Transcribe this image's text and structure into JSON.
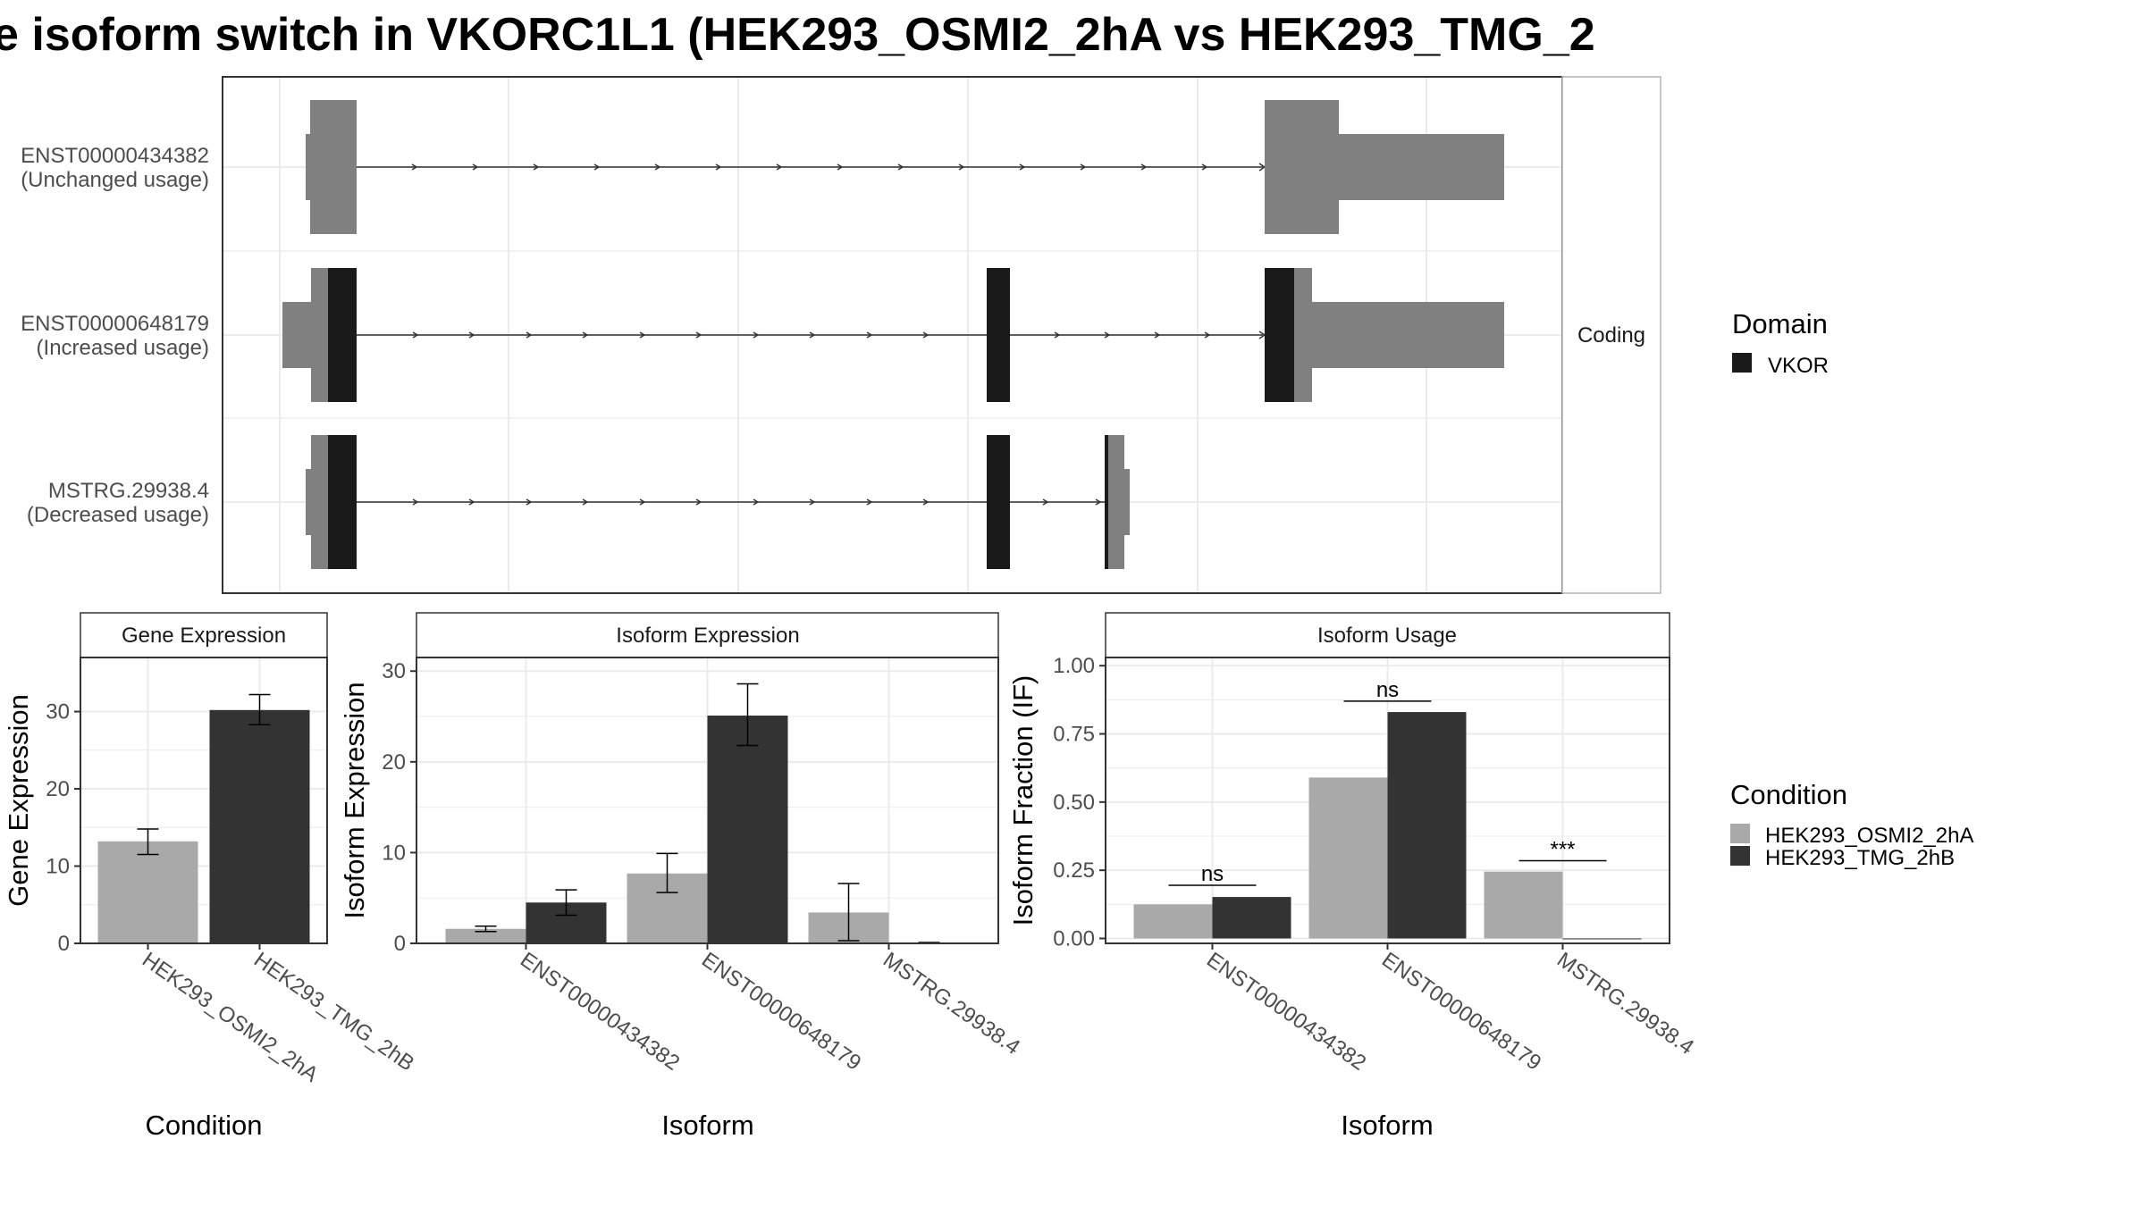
{
  "title": "e isoform switch in VKORC1L1 (HEK293_OSMI2_2hA vs HEK293_TMG_2",
  "colors": {
    "condition_a": "#a9a9a9",
    "condition_b": "#333333",
    "utr": "#808080",
    "domain": "#1a1a1a",
    "strip_fill": "#ffffff",
    "grid": "#ebebeb",
    "text": "#1a1a1a",
    "axis_text": "#4d4d4d"
  },
  "chart_data": [
    {
      "type": "gene-structure",
      "facet_label": "Coding",
      "legend": {
        "title": "Domain",
        "items": [
          {
            "label": "VKOR",
            "color": "#1a1a1a"
          }
        ]
      },
      "transcripts": [
        {
          "id": "ENST00000434382",
          "label": "ENST00000434382",
          "status": "(Unchanged usage)"
        },
        {
          "id": "ENST00000648179",
          "label": "ENST00000648179",
          "status": "(Increased usage)"
        },
        {
          "id": "MSTRG.29938.4",
          "label": "MSTRG.29938.4",
          "status": "(Decreased usage)"
        }
      ]
    },
    {
      "type": "bar",
      "panel": "Gene Expression",
      "xlabel": "Condition",
      "ylabel": "Gene Expression",
      "ylim": [
        0,
        37
      ],
      "yticks": [
        0,
        10,
        20,
        30
      ],
      "categories": [
        "HEK293_OSMI2_2hA",
        "HEK293_TMG_2hB"
      ],
      "series": [
        {
          "values": [
            13.2,
            30.2
          ],
          "err_low": [
            11.5,
            28.3
          ],
          "err_high": [
            14.8,
            32.2
          ]
        }
      ]
    },
    {
      "type": "bar",
      "panel": "Isoform Expression",
      "xlabel": "Isoform",
      "ylabel": "Isoform Expression",
      "ylim": [
        0,
        31.5
      ],
      "yticks": [
        0,
        10,
        20,
        30
      ],
      "categories": [
        "ENST00000434382",
        "ENST00000648179",
        "MSTRG.29938.4"
      ],
      "series": [
        {
          "name": "HEK293_OSMI2_2hA",
          "values": [
            1.6,
            7.7,
            3.4
          ],
          "err_low": [
            1.3,
            5.6,
            0.3
          ],
          "err_high": [
            1.9,
            9.9,
            6.6
          ]
        },
        {
          "name": "HEK293_TMG_2hB",
          "values": [
            4.5,
            25.1,
            0.05
          ],
          "err_low": [
            3.1,
            21.8,
            0.0
          ],
          "err_high": [
            5.9,
            28.6,
            0.1
          ]
        }
      ]
    },
    {
      "type": "bar",
      "panel": "Isoform Usage",
      "xlabel": "Isoform",
      "ylabel": "Isoform Fraction (IF)",
      "ylim": [
        -0.018,
        1.03
      ],
      "yticks": [
        "0.00",
        "0.25",
        "0.50",
        "0.75",
        "1.00"
      ],
      "categories": [
        "ENST00000434382",
        "ENST00000648179",
        "MSTRG.29938.4"
      ],
      "series": [
        {
          "name": "HEK293_OSMI2_2hA",
          "values": [
            0.125,
            0.59,
            0.245
          ]
        },
        {
          "name": "HEK293_TMG_2hB",
          "values": [
            0.152,
            0.83,
            0.0
          ]
        }
      ],
      "significance": [
        {
          "label": "ns",
          "y": 0.195
        },
        {
          "label": "ns",
          "y": 0.87
        },
        {
          "label": "***",
          "y": 0.285
        }
      ]
    }
  ],
  "condition_legend": {
    "title": "Condition",
    "items": [
      {
        "label": "HEK293_OSMI2_2hA",
        "color": "#a9a9a9"
      },
      {
        "label": "HEK293_TMG_2hB",
        "color": "#333333"
      }
    ]
  }
}
